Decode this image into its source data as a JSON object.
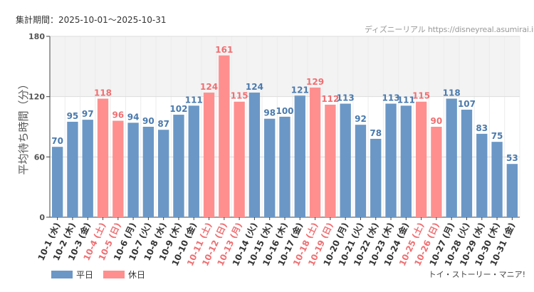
{
  "header": {
    "period": "集計期間：2025-10-01～2025-10-31",
    "source": "ディズニーリアル https://disneyreal.asumirai.info"
  },
  "footer": {
    "attraction": "トイ・ストーリー・マニア!"
  },
  "legend": [
    {
      "label": "平日",
      "color": "#6a97c6"
    },
    {
      "label": "休日",
      "color": "#ff8f8f"
    }
  ],
  "colors": {
    "weekday": "#6a97c6",
    "holiday": "#ff8f8f",
    "weekday_text": "#4a7aad",
    "holiday_text": "#ef6f72"
  },
  "chart_data": {
    "type": "bar",
    "title": "",
    "ylabel": "平均待ち時間（分）",
    "ylim": [
      0,
      180
    ],
    "yticks": [
      0,
      60,
      120,
      180
    ],
    "shaded_band": [
      120,
      180
    ],
    "categories": [
      "10-1 (水)",
      "10-2 (木)",
      "10-3 (金)",
      "10-4 (土)",
      "10-5 (日)",
      "10-6 (月)",
      "10-7 (火)",
      "10-8 (水)",
      "10-9 (木)",
      "10-10 (金)",
      "10-11 (土)",
      "10-12 (日)",
      "10-13 (月)",
      "10-14 (火)",
      "10-15 (水)",
      "10-16 (木)",
      "10-17 (金)",
      "10-18 (土)",
      "10-19 (日)",
      "10-20 (月)",
      "10-21 (火)",
      "10-22 (水)",
      "10-23 (木)",
      "10-24 (金)",
      "10-25 (土)",
      "10-26 (日)",
      "10-27 (月)",
      "10-28 (火)",
      "10-29 (水)",
      "10-30 (木)",
      "10-31 (金)"
    ],
    "values": [
      70,
      95,
      97,
      118,
      96,
      94,
      90,
      87,
      102,
      111,
      124,
      161,
      115,
      124,
      98,
      100,
      121,
      129,
      112,
      113,
      92,
      78,
      113,
      111,
      115,
      90,
      118,
      107,
      83,
      75,
      53
    ],
    "holiday": [
      false,
      false,
      false,
      true,
      true,
      false,
      false,
      false,
      false,
      false,
      true,
      true,
      true,
      false,
      false,
      false,
      false,
      true,
      true,
      false,
      false,
      false,
      false,
      false,
      true,
      true,
      false,
      false,
      false,
      false,
      false
    ]
  }
}
